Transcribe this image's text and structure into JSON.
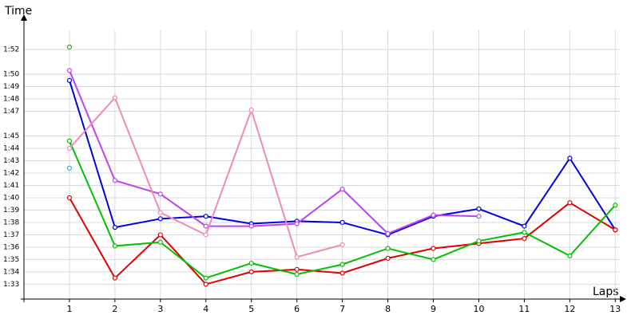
{
  "chart_data": {
    "type": "line",
    "x_label": "Laps",
    "y_label": "Time",
    "x": [
      1,
      2,
      3,
      4,
      5,
      6,
      7,
      8,
      9,
      10,
      11,
      12,
      13
    ],
    "xlim": [
      0,
      13.1
    ],
    "xticks": [
      1,
      2,
      3,
      4,
      5,
      6,
      7,
      8,
      9,
      10,
      11,
      12,
      13
    ],
    "ylim": [
      91.8,
      114.2
    ],
    "yticks": [
      {
        "value": 93,
        "label": "1:33"
      },
      {
        "value": 94,
        "label": "1:34"
      },
      {
        "value": 95,
        "label": "1:35"
      },
      {
        "value": 96,
        "label": "1:36"
      },
      {
        "value": 97,
        "label": "1:37"
      },
      {
        "value": 98,
        "label": "1:38"
      },
      {
        "value": 99,
        "label": "1:39"
      },
      {
        "value": 100,
        "label": "1:40"
      },
      {
        "value": 101,
        "label": "1:41"
      },
      {
        "value": 102,
        "label": "1:42"
      },
      {
        "value": 103,
        "label": "1:43"
      },
      {
        "value": 104,
        "label": "1:44"
      },
      {
        "value": 105,
        "label": "1:45"
      },
      {
        "value": 107,
        "label": "1:47"
      },
      {
        "value": 108,
        "label": "1:48"
      },
      {
        "value": 109,
        "label": "1:49"
      },
      {
        "value": 110,
        "label": "1:50"
      },
      {
        "value": 112,
        "label": "1:52"
      }
    ],
    "grid": true,
    "series": [
      {
        "color": "#0000e0",
        "values": [
          109.5,
          97.6,
          98.3,
          98.5,
          97.9,
          98.1,
          98.0,
          97.0,
          98.5,
          99.1,
          97.7,
          103.2,
          97.4
        ]
      },
      {
        "color": "#e00000",
        "values": [
          100.0,
          93.5,
          97.0,
          93.0,
          94.0,
          94.2,
          93.9,
          95.1,
          95.9,
          96.3,
          96.7,
          99.6,
          97.4
        ]
      },
      {
        "color": "#00c000",
        "values": [
          104.6,
          96.1,
          96.4,
          93.5,
          94.7,
          93.8,
          94.6,
          95.9,
          95.0,
          96.5,
          97.2,
          95.3,
          99.4
        ]
      },
      {
        "color": "#c040f0",
        "values": [
          110.3,
          101.4,
          100.3,
          97.7,
          97.7,
          97.9,
          100.7,
          97.1,
          98.6,
          98.5,
          null,
          null,
          null
        ]
      },
      {
        "color": "#f088b8",
        "values": [
          104.0,
          108.1,
          98.8,
          97.0,
          107.1,
          95.2,
          96.2,
          null,
          null,
          null,
          null,
          null,
          null
        ]
      },
      {
        "color": "#30a030",
        "values": [
          112.2,
          null,
          null,
          null,
          null,
          null,
          null,
          null,
          null,
          null,
          null,
          null,
          null
        ]
      },
      {
        "color": "#40a0d0",
        "values": [
          102.4,
          null,
          null,
          null,
          null,
          null,
          null,
          null,
          null,
          null,
          null,
          null,
          null
        ]
      }
    ]
  }
}
